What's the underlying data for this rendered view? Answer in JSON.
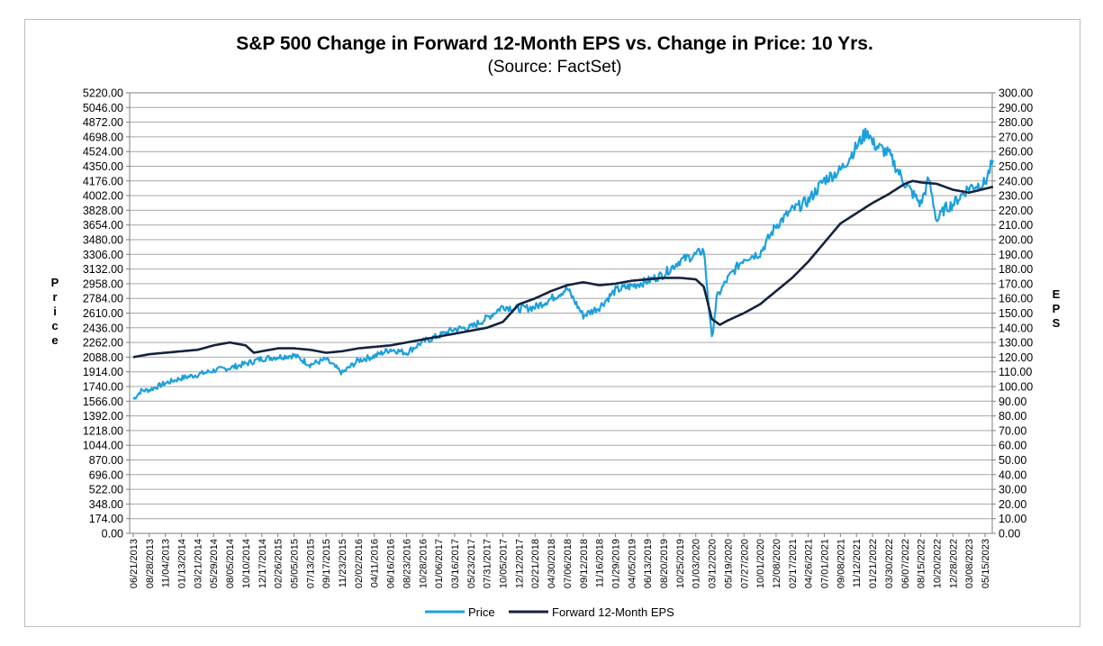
{
  "chart_data": {
    "type": "line",
    "title": "S&P 500 Change in Forward 12-Month EPS vs. Change in Price: 10 Yrs.",
    "subtitle": "(Source: FactSet)",
    "ylabel_left": "Price",
    "ylabel_right": "EPS",
    "ylim_left": [
      0,
      5220
    ],
    "ylim_right": [
      0,
      300
    ],
    "grid": true,
    "legend_position": "bottom-center",
    "colors": {
      "price": "#1ca0dc",
      "eps": "#14233d"
    },
    "left_ticks": [
      "0.00",
      "174.00",
      "348.00",
      "522.00",
      "696.00",
      "870.00",
      "1044.00",
      "1218.00",
      "1392.00",
      "1566.00",
      "1740.00",
      "1914.00",
      "2088.00",
      "2262.00",
      "2436.00",
      "2610.00",
      "2784.00",
      "2958.00",
      "3132.00",
      "3306.00",
      "3480.00",
      "3654.00",
      "3828.00",
      "4002.00",
      "4176.00",
      "4350.00",
      "4524.00",
      "4698.00",
      "4872.00",
      "5046.00",
      "5220.00"
    ],
    "right_ticks": [
      "0.00",
      "10.00",
      "20.00",
      "30.00",
      "40.00",
      "50.00",
      "60.00",
      "70.00",
      "80.00",
      "90.00",
      "100.00",
      "110.00",
      "120.00",
      "130.00",
      "140.00",
      "150.00",
      "160.00",
      "170.00",
      "180.00",
      "190.00",
      "200.00",
      "210.00",
      "220.00",
      "230.00",
      "240.00",
      "250.00",
      "260.00",
      "270.00",
      "280.00",
      "290.00",
      "300.00"
    ],
    "x_ticks": [
      "06/21/2013",
      "08/28/2013",
      "11/04/2013",
      "01/13/2014",
      "03/21/2014",
      "05/29/2014",
      "08/05/2014",
      "10/10/2014",
      "12/17/2014",
      "02/26/2015",
      "05/05/2015",
      "07/13/2015",
      "09/17/2015",
      "11/23/2015",
      "02/02/2016",
      "04/11/2016",
      "06/16/2016",
      "08/23/2016",
      "10/28/2016",
      "01/06/2017",
      "03/16/2017",
      "05/23/2017",
      "07/31/2017",
      "10/05/2017",
      "12/12/2017",
      "02/21/2018",
      "04/30/2018",
      "07/06/2018",
      "09/12/2018",
      "11/16/2018",
      "01/29/2019",
      "04/05/2019",
      "06/13/2019",
      "08/20/2019",
      "10/25/2019",
      "01/03/2020",
      "03/12/2020",
      "05/19/2020",
      "07/27/2020",
      "10/01/2020",
      "12/08/2020",
      "02/17/2021",
      "04/26/2021",
      "07/01/2021",
      "09/08/2021",
      "11/12/2021",
      "01/21/2022",
      "03/30/2022",
      "06/07/2022",
      "08/15/2022",
      "10/20/2022",
      "12/28/2022",
      "03/08/2023",
      "05/15/2023"
    ],
    "series": [
      {
        "name": "Price",
        "t": [
          0,
          0.5,
          1,
          2,
          3,
          4,
          5,
          6,
          7,
          8,
          9,
          10,
          11,
          12,
          13,
          14,
          15,
          16,
          17,
          18,
          19,
          20,
          21,
          22,
          23,
          24,
          25,
          26,
          27,
          28,
          29,
          30,
          31,
          32,
          33,
          34,
          35,
          35.5,
          36,
          36.3,
          36.5,
          37,
          38,
          39,
          40,
          41,
          42,
          43,
          44,
          45,
          45.7,
          46,
          47,
          48,
          49,
          49.5,
          50,
          50.5,
          51,
          52,
          53,
          53.5
        ],
        "values": [
          1590,
          1690,
          1700,
          1780,
          1840,
          1880,
          1930,
          1960,
          2010,
          2070,
          2090,
          2110,
          2000,
          2060,
          1900,
          2050,
          2100,
          2180,
          2140,
          2270,
          2340,
          2420,
          2440,
          2550,
          2690,
          2660,
          2680,
          2780,
          2900,
          2580,
          2680,
          2880,
          2930,
          2990,
          3070,
          3230,
          3300,
          3360,
          2300,
          2780,
          2860,
          3020,
          3260,
          3320,
          3650,
          3830,
          3940,
          4190,
          4300,
          4580,
          4780,
          4620,
          4500,
          4150,
          3900,
          4200,
          3700,
          3850,
          3900,
          4100,
          4150,
          4420
        ]
      },
      {
        "name": "Forward 12-Month EPS",
        "t": [
          0,
          1,
          2,
          3,
          4,
          5,
          6,
          6.5,
          7,
          7.5,
          8,
          9,
          10,
          11,
          12,
          13,
          14,
          15,
          16,
          17,
          18,
          19,
          20,
          21,
          22,
          23,
          24,
          24.5,
          25,
          26,
          27,
          28,
          29,
          30,
          31,
          32,
          33,
          34,
          35,
          35.5,
          36,
          36.5,
          37,
          38,
          39,
          40,
          41,
          42,
          43,
          44,
          45,
          46,
          47,
          48,
          48.5,
          49,
          50,
          51,
          52,
          53.5
        ],
        "values": [
          120,
          122,
          123,
          124,
          125,
          128,
          130,
          129,
          128,
          123,
          124,
          126,
          126,
          125,
          123,
          124,
          126,
          127,
          128,
          130,
          132,
          134,
          136,
          138,
          140,
          144,
          156,
          158,
          160,
          165,
          169,
          171,
          169,
          170,
          172,
          173,
          174,
          174,
          173,
          168,
          146,
          142,
          145,
          150,
          156,
          165,
          174,
          185,
          198,
          211,
          218,
          225,
          231,
          238,
          240,
          239,
          238,
          234,
          232,
          236
        ]
      }
    ]
  }
}
